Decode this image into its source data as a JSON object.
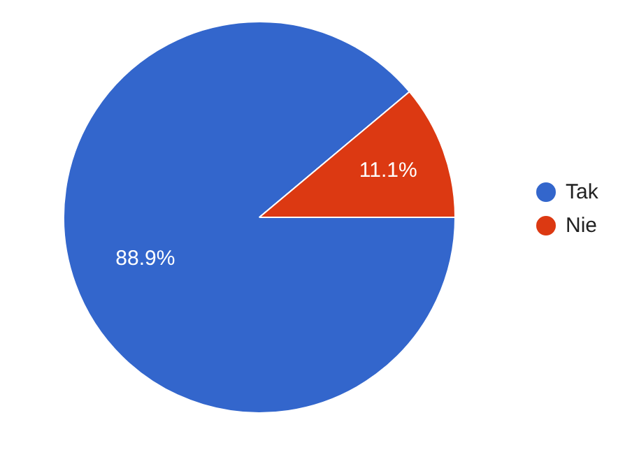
{
  "chart_data": {
    "type": "pie",
    "categories": [
      "Tak",
      "Nie"
    ],
    "values": [
      88.9,
      11.1
    ],
    "colors": [
      "#3366cc",
      "#dc3912"
    ],
    "value_labels": [
      "88.9%",
      "11.1%"
    ],
    "legend": "right"
  }
}
